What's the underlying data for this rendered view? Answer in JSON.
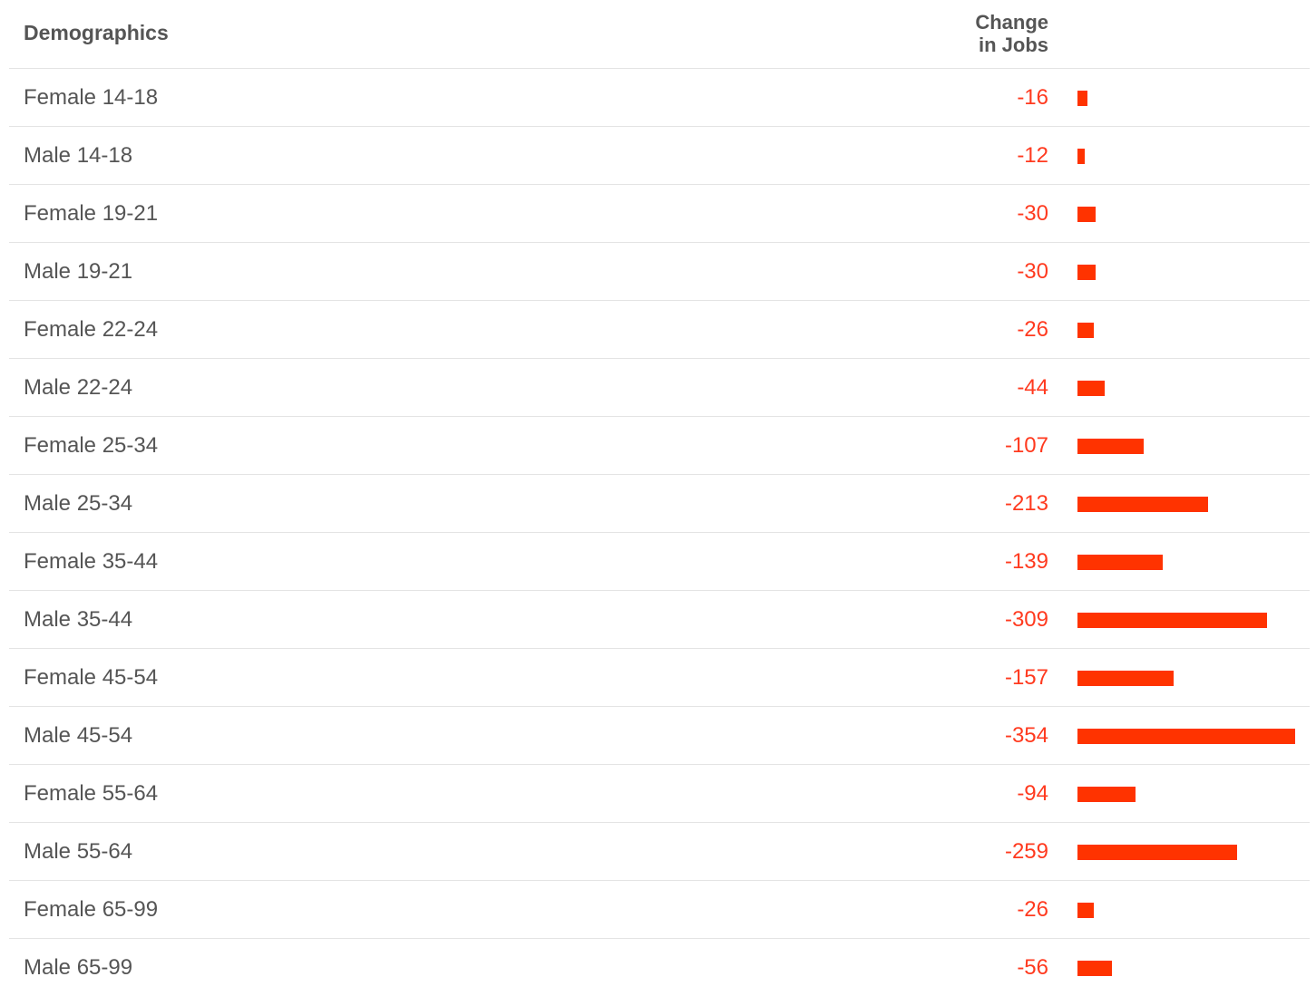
{
  "header": {
    "demographics": "Demographics",
    "change_line1": "Change",
    "change_line2": "in Jobs"
  },
  "colors": {
    "bar": "#ff3300",
    "value_text": "#ff3a1f",
    "label_text": "#555555",
    "divider": "#e4e4e4"
  },
  "chart_data": {
    "type": "bar",
    "orientation": "horizontal",
    "xlabel": "",
    "ylabel": "",
    "categories": [
      "Female 14-18",
      "Male 14-18",
      "Female 19-21",
      "Male 19-21",
      "Female 22-24",
      "Male 22-24",
      "Female 25-34",
      "Male 25-34",
      "Female 35-44",
      "Male 35-44",
      "Female 45-54",
      "Male 45-54",
      "Female 55-64",
      "Male 55-64",
      "Female 65-99",
      "Male 65-99"
    ],
    "values": [
      -16,
      -12,
      -30,
      -30,
      -26,
      -44,
      -107,
      -213,
      -139,
      -309,
      -157,
      -354,
      -94,
      -259,
      -26,
      -56
    ],
    "value_labels": [
      "-16",
      "-12",
      "-30",
      "-30",
      "-26",
      "-44",
      "-107",
      "-213",
      "-139",
      "-309",
      "-157",
      "-354",
      "-94",
      "-259",
      "-26",
      "-56"
    ],
    "bar_magnitude_max": 354,
    "grid": false,
    "legend": "none"
  }
}
